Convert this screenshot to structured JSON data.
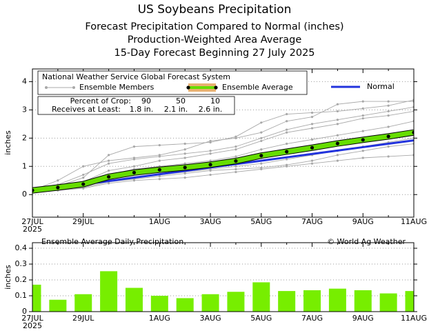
{
  "chart_data": [
    {
      "type": "line",
      "title": "US Soybeans Precipitation",
      "subtitle": [
        "Forecast Precipitation Compared to Normal (inches)",
        "Production-Weighted Area Average",
        "15-Day Forecast Beginning 27 July 2025"
      ],
      "source": "National Weather Service Global Forecast System",
      "ylabel": "inches",
      "categories": [
        "27JUL",
        null,
        "29JUL",
        null,
        null,
        "1AUG",
        null,
        "3AUG",
        null,
        "5AUG",
        null,
        "7AUG",
        null,
        "9AUG",
        null,
        "11AUG"
      ],
      "year_label": "2025",
      "ylim": [
        -0.8,
        4.45
      ],
      "yticks": [
        0,
        1,
        2,
        3,
        4
      ],
      "grid": true,
      "legend": "upper left",
      "series": [
        {
          "name": "Ensemble Members",
          "color": "#a8a8a8",
          "values": [
            [
              0.15,
              0.3,
              0.6,
              1.4,
              1.7,
              1.75,
              1.8,
              1.85,
              2.05,
              2.55,
              2.85,
              2.9,
              2.95,
              3.05,
              3.15,
              3.35
            ],
            [
              0.15,
              0.5,
              1.0,
              1.2,
              1.3,
              1.4,
              1.6,
              1.9,
              2.0,
              2.2,
              2.6,
              2.75,
              3.2,
              3.3,
              3.3,
              3.3
            ],
            [
              0.14,
              0.3,
              0.45,
              0.85,
              1.0,
              1.2,
              1.3,
              1.45,
              1.6,
              1.9,
              2.2,
              2.35,
              2.5,
              2.7,
              2.8,
              2.95
            ],
            [
              0.15,
              0.25,
              0.4,
              0.7,
              0.9,
              1.0,
              1.1,
              1.2,
              1.35,
              1.6,
              1.8,
              1.95,
              2.1,
              2.25,
              2.4,
              2.6
            ],
            [
              0.14,
              0.22,
              0.35,
              0.6,
              0.75,
              0.85,
              0.95,
              1.05,
              1.15,
              1.3,
              1.45,
              1.6,
              1.75,
              1.9,
              2.05,
              2.2
            ],
            [
              0.13,
              0.2,
              0.3,
              0.5,
              0.6,
              0.7,
              0.8,
              0.9,
              1.0,
              1.1,
              1.25,
              1.4,
              1.55,
              1.7,
              1.85,
              2.0
            ],
            [
              0.12,
              0.18,
              0.25,
              0.45,
              0.55,
              0.65,
              0.75,
              0.85,
              0.9,
              0.95,
              1.05,
              1.2,
              1.4,
              1.55,
              1.7,
              1.8
            ],
            [
              0.12,
              0.15,
              0.22,
              0.4,
              0.5,
              0.55,
              0.6,
              0.7,
              0.8,
              0.9,
              1.0,
              1.1,
              1.2,
              1.3,
              1.35,
              1.4
            ],
            [
              0.15,
              0.35,
              0.7,
              1.1,
              1.25,
              1.35,
              1.45,
              1.55,
              1.7,
              2.0,
              2.3,
              2.5,
              2.65,
              2.8,
              2.95,
              3.1
            ]
          ]
        },
        {
          "name": "Ensemble Average",
          "color": "#66dd00",
          "values": [
            0.15,
            0.25,
            0.37,
            0.63,
            0.78,
            0.88,
            0.96,
            1.06,
            1.19,
            1.38,
            1.52,
            1.66,
            1.81,
            1.94,
            2.06,
            2.2
          ]
        },
        {
          "name": "Normal",
          "color": "#2233dd",
          "values": [
            0.12,
            0.24,
            0.36,
            0.48,
            0.6,
            0.72,
            0.84,
            0.96,
            1.08,
            1.2,
            1.32,
            1.44,
            1.56,
            1.68,
            1.8,
            1.92
          ]
        }
      ],
      "crop_table": {
        "row_labels": [
          "Percent of Crop:",
          "Receives at Least:"
        ],
        "percents": [
          90,
          50,
          10
        ],
        "amounts": [
          1.8,
          2.1,
          2.6
        ],
        "amount_labels": [
          "1.8 in.",
          "2.1 in.",
          "2.6 in."
        ]
      }
    },
    {
      "type": "bar",
      "title": "Ensemble Average Daily Precipitation",
      "credit": "© World Ag Weather",
      "ylabel": "inches",
      "categories": [
        "27JUL",
        null,
        "29JUL",
        null,
        null,
        "1AUG",
        null,
        "3AUG",
        null,
        "5AUG",
        null,
        "7AUG",
        null,
        "9AUG",
        null,
        "11AUG"
      ],
      "year_label": "2025",
      "values": [
        0.17,
        0.075,
        0.11,
        0.255,
        0.15,
        0.1,
        0.085,
        0.11,
        0.125,
        0.185,
        0.13,
        0.135,
        0.145,
        0.135,
        0.115,
        0.13
      ],
      "color": "#77ee00",
      "ylim": [
        0,
        0.435
      ],
      "yticks": [
        0,
        0.1,
        0.2,
        0.3,
        0.4
      ],
      "grid": true
    }
  ]
}
